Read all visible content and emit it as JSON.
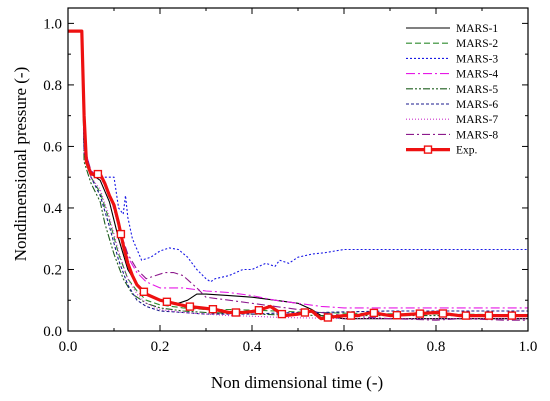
{
  "chart_data": {
    "type": "line",
    "xlabel": "Non dimensional time (-)",
    "ylabel": "Nondimensional pressure (-)",
    "xlim": [
      0.0,
      1.0
    ],
    "ylim": [
      0.0,
      1.05
    ],
    "xticks": [
      "0.0",
      "0.2",
      "0.4",
      "0.6",
      "0.8",
      "1.0"
    ],
    "yticks": [
      "0.0",
      "0.2",
      "0.4",
      "0.6",
      "0.8",
      "1.0"
    ],
    "grid": false,
    "legend_position": "top-right",
    "series": [
      {
        "name": "MARS-1",
        "color": "#000000",
        "dash": "solid",
        "x": [
          0,
          0.03,
          0.035,
          0.05,
          0.07,
          0.09,
          0.11,
          0.13,
          0.15,
          0.17,
          0.2,
          0.24,
          0.26,
          0.28,
          0.3,
          0.35,
          0.4,
          0.45,
          0.5,
          0.53,
          0.55,
          0.6,
          0.7,
          0.8,
          0.9,
          1.0
        ],
        "y": [
          0.975,
          0.975,
          0.6,
          0.51,
          0.49,
          0.42,
          0.3,
          0.2,
          0.15,
          0.12,
          0.1,
          0.09,
          0.1,
          0.12,
          0.12,
          0.115,
          0.11,
          0.1,
          0.09,
          0.07,
          0.05,
          0.04,
          0.04,
          0.04,
          0.04,
          0.04
        ]
      },
      {
        "name": "MARS-2",
        "color": "#2e8b2e",
        "dash": "6,3",
        "x": [
          0,
          0.03,
          0.035,
          0.05,
          0.07,
          0.09,
          0.11,
          0.13,
          0.15,
          0.17,
          0.2,
          0.25,
          0.3,
          0.35,
          0.4,
          0.45,
          0.5,
          0.55,
          0.6,
          0.7,
          0.8,
          0.9,
          1.0
        ],
        "y": [
          0.975,
          0.975,
          0.58,
          0.5,
          0.45,
          0.36,
          0.25,
          0.17,
          0.13,
          0.1,
          0.085,
          0.075,
          0.07,
          0.07,
          0.068,
          0.065,
          0.062,
          0.06,
          0.058,
          0.056,
          0.055,
          0.054,
          0.053
        ]
      },
      {
        "name": "MARS-3",
        "color": "#1a1ae6",
        "dash": "2,2",
        "x": [
          0,
          0.03,
          0.035,
          0.05,
          0.07,
          0.09,
          0.1,
          0.11,
          0.12,
          0.125,
          0.13,
          0.14,
          0.16,
          0.18,
          0.2,
          0.22,
          0.24,
          0.26,
          0.28,
          0.3,
          0.31,
          0.32,
          0.35,
          0.38,
          0.4,
          0.43,
          0.45,
          0.46,
          0.48,
          0.5,
          0.53,
          0.56,
          0.58,
          0.6,
          0.7,
          0.8,
          0.9,
          1.0
        ],
        "y": [
          0.975,
          0.975,
          0.6,
          0.51,
          0.5,
          0.5,
          0.5,
          0.4,
          0.38,
          0.44,
          0.37,
          0.3,
          0.23,
          0.24,
          0.26,
          0.27,
          0.265,
          0.24,
          0.2,
          0.17,
          0.16,
          0.17,
          0.18,
          0.2,
          0.2,
          0.22,
          0.21,
          0.23,
          0.22,
          0.24,
          0.25,
          0.255,
          0.26,
          0.265,
          0.265,
          0.265,
          0.265,
          0.265
        ]
      },
      {
        "name": "MARS-4",
        "color": "#e619e6",
        "dash": "9,3,2,3",
        "x": [
          0,
          0.03,
          0.035,
          0.05,
          0.07,
          0.09,
          0.11,
          0.13,
          0.15,
          0.17,
          0.2,
          0.22,
          0.25,
          0.3,
          0.35,
          0.4,
          0.45,
          0.5,
          0.55,
          0.6,
          0.7,
          0.8,
          0.9,
          1.0
        ],
        "y": [
          0.975,
          0.975,
          0.6,
          0.52,
          0.5,
          0.45,
          0.34,
          0.24,
          0.19,
          0.16,
          0.14,
          0.14,
          0.14,
          0.13,
          0.125,
          0.115,
          0.1,
          0.09,
          0.08,
          0.075,
          0.075,
          0.075,
          0.075,
          0.075
        ]
      },
      {
        "name": "MARS-5",
        "color": "#1f5f1f",
        "dash": "7,2,2,2,2,2",
        "x": [
          0,
          0.03,
          0.035,
          0.05,
          0.07,
          0.08,
          0.1,
          0.12,
          0.14,
          0.17,
          0.2,
          0.25,
          0.3,
          0.35,
          0.4,
          0.45,
          0.5,
          0.55,
          0.6,
          0.7,
          0.8,
          0.9,
          1.0
        ],
        "y": [
          0.975,
          0.975,
          0.55,
          0.48,
          0.42,
          0.35,
          0.25,
          0.17,
          0.12,
          0.09,
          0.075,
          0.065,
          0.06,
          0.058,
          0.055,
          0.053,
          0.052,
          0.05,
          0.05,
          0.05,
          0.05,
          0.05,
          0.05
        ]
      },
      {
        "name": "MARS-6",
        "color": "#1a1a8c",
        "dash": "3,2",
        "x": [
          0,
          0.03,
          0.035,
          0.05,
          0.07,
          0.09,
          0.11,
          0.13,
          0.15,
          0.17,
          0.2,
          0.25,
          0.3,
          0.35,
          0.4,
          0.45,
          0.5,
          0.55,
          0.6,
          0.7,
          0.8,
          0.9,
          1.0
        ],
        "y": [
          0.975,
          0.975,
          0.58,
          0.5,
          0.44,
          0.34,
          0.23,
          0.15,
          0.1,
          0.08,
          0.065,
          0.06,
          0.055,
          0.055,
          0.055,
          0.058,
          0.06,
          0.06,
          0.062,
          0.065,
          0.065,
          0.065,
          0.065
        ]
      },
      {
        "name": "MARS-7",
        "color": "#cc33cc",
        "dash": "1,2",
        "x": [
          0,
          0.03,
          0.035,
          0.05,
          0.07,
          0.09,
          0.11,
          0.13,
          0.15,
          0.17,
          0.2,
          0.25,
          0.3,
          0.35,
          0.4,
          0.45,
          0.5,
          0.55,
          0.6,
          0.7,
          0.8,
          0.9,
          1.0
        ],
        "y": [
          0.975,
          0.975,
          0.58,
          0.5,
          0.46,
          0.37,
          0.26,
          0.17,
          0.12,
          0.09,
          0.07,
          0.06,
          0.055,
          0.05,
          0.048,
          0.045,
          0.043,
          0.042,
          0.04,
          0.04,
          0.04,
          0.04,
          0.04
        ]
      },
      {
        "name": "MARS-8",
        "color": "#8c1a8c",
        "dash": "8,3,2,3",
        "x": [
          0,
          0.03,
          0.035,
          0.05,
          0.07,
          0.09,
          0.11,
          0.13,
          0.15,
          0.17,
          0.19,
          0.21,
          0.23,
          0.25,
          0.28,
          0.3,
          0.35,
          0.4,
          0.45,
          0.5,
          0.55,
          0.6,
          0.65,
          0.7,
          0.75,
          0.8,
          0.85,
          0.9,
          0.95,
          1.0
        ],
        "y": [
          0.975,
          0.975,
          0.6,
          0.52,
          0.5,
          0.45,
          0.34,
          0.25,
          0.2,
          0.17,
          0.18,
          0.19,
          0.19,
          0.18,
          0.14,
          0.11,
          0.1,
          0.09,
          0.08,
          0.07,
          0.06,
          0.05,
          0.045,
          0.04,
          0.038,
          0.035,
          0.04,
          0.038,
          0.035,
          0.035
        ]
      },
      {
        "name": "Exp.",
        "color": "#ee1111",
        "dash": "solid",
        "marker": "square",
        "x": [
          0,
          0.03,
          0.035,
          0.04,
          0.05,
          0.06,
          0.07,
          0.08,
          0.09,
          0.1,
          0.11,
          0.12,
          0.13,
          0.14,
          0.15,
          0.17,
          0.2,
          0.23,
          0.26,
          0.29,
          0.32,
          0.35,
          0.38,
          0.41,
          0.44,
          0.46,
          0.47,
          0.5,
          0.53,
          0.55,
          0.57,
          0.6,
          0.63,
          0.66,
          0.7,
          0.75,
          0.8,
          0.85,
          0.9,
          0.95,
          1.0
        ],
        "y": [
          0.975,
          0.975,
          0.7,
          0.55,
          0.51,
          0.51,
          0.51,
          0.48,
          0.44,
          0.41,
          0.35,
          0.28,
          0.22,
          0.18,
          0.15,
          0.12,
          0.1,
          0.09,
          0.08,
          0.075,
          0.07,
          0.06,
          0.06,
          0.065,
          0.08,
          0.06,
          0.05,
          0.055,
          0.065,
          0.04,
          0.045,
          0.05,
          0.05,
          0.06,
          0.05,
          0.055,
          0.06,
          0.05,
          0.05,
          0.05,
          0.05
        ],
        "marker_x": [
          0.065,
          0.115,
          0.165,
          0.215,
          0.265,
          0.315,
          0.365,
          0.415,
          0.465,
          0.515,
          0.565,
          0.615,
          0.665,
          0.715,
          0.765,
          0.815,
          0.865,
          0.915,
          0.965
        ]
      }
    ]
  }
}
